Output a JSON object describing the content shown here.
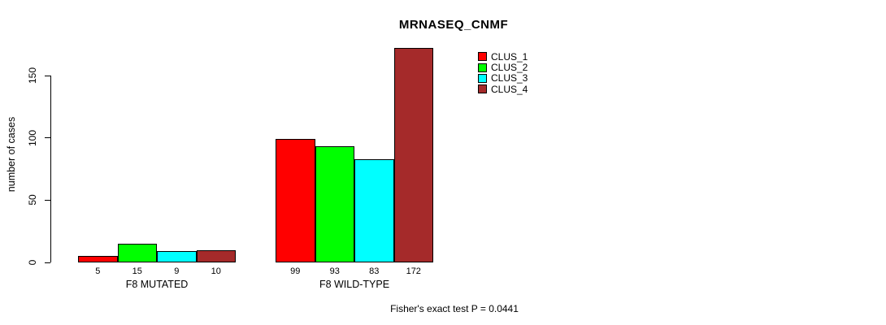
{
  "title": "MRNASEQ_CNMF",
  "ylabel": "number of cases",
  "stat_note": "Fisher's exact test P = 0.0441",
  "legend": {
    "position": "top-right",
    "entries": [
      {
        "label": "CLUS_1",
        "color": "#FF0000"
      },
      {
        "label": "CLUS_2",
        "color": "#00FF00"
      },
      {
        "label": "CLUS_3",
        "color": "#00FFFF"
      },
      {
        "label": "CLUS_4",
        "color": "#A52A2A"
      }
    ]
  },
  "chart_data": {
    "type": "bar",
    "title": "MRNASEQ_CNMF",
    "xlabel": "",
    "ylabel": "number of cases",
    "categories": [
      "F8 MUTATED",
      "F8 WILD-TYPE"
    ],
    "series": [
      {
        "name": "CLUS_1",
        "color": "#FF0000",
        "values": [
          5,
          99
        ]
      },
      {
        "name": "CLUS_2",
        "color": "#00FF00",
        "values": [
          15,
          93
        ]
      },
      {
        "name": "CLUS_3",
        "color": "#00FFFF",
        "values": [
          9,
          83
        ]
      },
      {
        "name": "CLUS_4",
        "color": "#A52A2A",
        "values": [
          10,
          172
        ]
      }
    ],
    "bar_value_labels": [
      [
        5,
        15,
        9,
        10
      ],
      [
        99,
        93,
        83,
        172
      ]
    ],
    "yticks": [
      0,
      50,
      100,
      150
    ],
    "ylim": [
      0,
      175
    ],
    "grid": false,
    "legend_position": "top-right",
    "annotation": "Fisher's exact test P = 0.0441"
  }
}
